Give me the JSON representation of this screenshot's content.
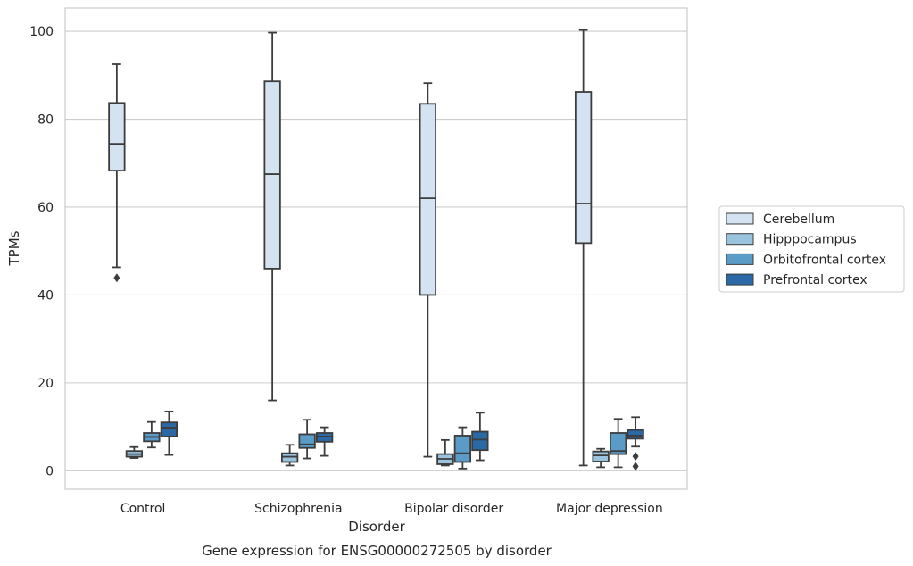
{
  "chart_data": {
    "type": "box",
    "title": "",
    "caption": "Gene expression for ENSG00000272505 by disorder",
    "xlabel": "Disorder",
    "ylabel": "TPMs",
    "ylim": [
      -4.2,
      105.3
    ],
    "yticks": [
      0,
      20,
      40,
      60,
      80,
      100
    ],
    "grid": "horizontal",
    "legend_placement": "right",
    "categories": [
      "Control",
      "Schizophrenia",
      "Bipolar disorder",
      "Major depression"
    ],
    "series": [
      {
        "name": "Cerebellum",
        "color": "#d4e2f1",
        "boxes": [
          {
            "whisker_low": 46.3,
            "q1": 68.3,
            "median": 74.4,
            "q3": 83.7,
            "whisker_high": 92.5,
            "outliers": [
              43.9
            ]
          },
          {
            "whisker_low": 16.0,
            "q1": 46.0,
            "median": 67.5,
            "q3": 88.6,
            "whisker_high": 99.7,
            "outliers": []
          },
          {
            "whisker_low": 3.2,
            "q1": 40.0,
            "median": 62.0,
            "q3": 83.5,
            "whisker_high": 88.2,
            "outliers": []
          },
          {
            "whisker_low": 1.2,
            "q1": 51.8,
            "median": 60.8,
            "q3": 86.2,
            "whisker_high": 100.3,
            "outliers": []
          }
        ]
      },
      {
        "name": "Hipppocampus",
        "color": "#9ac3de",
        "boxes": [
          {
            "whisker_low": 2.9,
            "q1": 3.2,
            "median": 3.8,
            "q3": 4.5,
            "whisker_high": 5.4,
            "outliers": []
          },
          {
            "whisker_low": 1.2,
            "q1": 2.0,
            "median": 3.2,
            "q3": 4.0,
            "whisker_high": 5.9,
            "outliers": []
          },
          {
            "whisker_low": 1.2,
            "q1": 1.5,
            "median": 2.7,
            "q3": 3.8,
            "whisker_high": 7.0,
            "outliers": []
          },
          {
            "whisker_low": 0.8,
            "q1": 2.1,
            "median": 3.5,
            "q3": 4.4,
            "whisker_high": 5.0,
            "outliers": []
          }
        ]
      },
      {
        "name": "Orbitofrontal cortex",
        "color": "#5a9bc8",
        "boxes": [
          {
            "whisker_low": 5.3,
            "q1": 6.7,
            "median": 7.7,
            "q3": 8.6,
            "whisker_high": 11.1,
            "outliers": []
          },
          {
            "whisker_low": 2.8,
            "q1": 5.2,
            "median": 6.0,
            "q3": 8.3,
            "whisker_high": 11.6,
            "outliers": []
          },
          {
            "whisker_low": 0.5,
            "q1": 2.0,
            "median": 4.0,
            "q3": 8.0,
            "whisker_high": 9.9,
            "outliers": []
          },
          {
            "whisker_low": 0.8,
            "q1": 3.8,
            "median": 4.5,
            "q3": 8.6,
            "whisker_high": 11.8,
            "outliers": []
          }
        ]
      },
      {
        "name": "Prefrontal cortex",
        "color": "#2a68a6",
        "boxes": [
          {
            "whisker_low": 3.6,
            "q1": 7.8,
            "median": 9.8,
            "q3": 11.0,
            "whisker_high": 13.5,
            "outliers": []
          },
          {
            "whisker_low": 3.4,
            "q1": 6.6,
            "median": 7.8,
            "q3": 8.6,
            "whisker_high": 9.9,
            "outliers": []
          },
          {
            "whisker_low": 2.4,
            "q1": 4.7,
            "median": 7.1,
            "q3": 8.9,
            "whisker_high": 13.2,
            "outliers": []
          },
          {
            "whisker_low": 5.5,
            "q1": 7.3,
            "median": 8.0,
            "q3": 9.3,
            "whisker_high": 12.2,
            "outliers": [
              3.3,
              1.0
            ]
          }
        ]
      }
    ]
  }
}
